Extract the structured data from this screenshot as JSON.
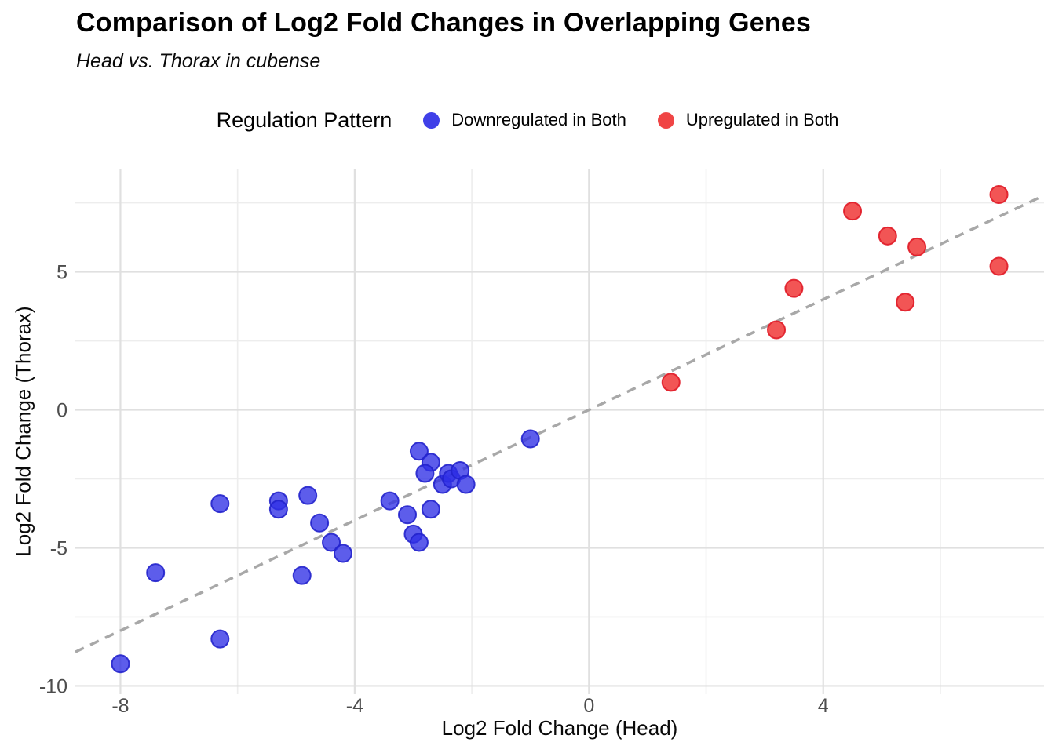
{
  "header": {
    "title": "Comparison of Log2 Fold Changes in Overlapping Genes",
    "subtitle": "Head vs. Thorax in cubense"
  },
  "legend": {
    "title": "Regulation Pattern",
    "items": [
      {
        "label": "Downregulated in Both",
        "color": "#4040e8"
      },
      {
        "label": "Upregulated in Both",
        "color": "#f04545"
      }
    ]
  },
  "chart_data": {
    "type": "scatter",
    "title": "Comparison of Log2 Fold Changes in Overlapping Genes",
    "subtitle": "Head vs. Thorax in cubense",
    "xlabel": "Log2 Fold Change (Head)",
    "ylabel": "Log2 Fold Change (Thorax)",
    "xlim": [
      -8.77,
      7.77
    ],
    "ylim": [
      -10.3,
      8.71
    ],
    "x_major_ticks": [
      -8,
      -4,
      0,
      4
    ],
    "x_minor_gridlines": [
      -6,
      -2,
      2,
      6
    ],
    "y_major_ticks": [
      -10,
      -5,
      0,
      5
    ],
    "y_minor_gridlines": [
      -7.5,
      -2.5,
      2.5,
      7.5
    ],
    "grid": true,
    "legend_position": "top",
    "tick_label_color": "#4d4d4d",
    "grid_major_color": "#e0e0e0",
    "grid_minor_color": "#ededed",
    "reference_line": {
      "slope": 1,
      "intercept": 0,
      "style": "dashed",
      "color": "#a8a8a8"
    },
    "series": [
      {
        "name": "Downregulated in Both",
        "fill": "rgba(48,48,230,0.78)",
        "stroke": "rgba(34,34,204,0.9)",
        "points": [
          [
            -8.0,
            -9.2
          ],
          [
            -7.4,
            -5.9
          ],
          [
            -6.3,
            -8.3
          ],
          [
            -6.3,
            -3.4
          ],
          [
            -5.3,
            -3.3
          ],
          [
            -5.3,
            -3.6
          ],
          [
            -4.9,
            -6.0
          ],
          [
            -4.8,
            -3.1
          ],
          [
            -4.6,
            -4.1
          ],
          [
            -4.4,
            -4.8
          ],
          [
            -4.2,
            -5.2
          ],
          [
            -3.4,
            -3.3
          ],
          [
            -3.1,
            -3.8
          ],
          [
            -3.0,
            -4.5
          ],
          [
            -2.9,
            -4.8
          ],
          [
            -2.9,
            -1.5
          ],
          [
            -2.7,
            -1.9
          ],
          [
            -2.8,
            -2.3
          ],
          [
            -2.7,
            -3.6
          ],
          [
            -2.5,
            -2.7
          ],
          [
            -2.4,
            -2.3
          ],
          [
            -2.35,
            -2.5
          ],
          [
            -2.2,
            -2.2
          ],
          [
            -2.1,
            -2.7
          ],
          [
            -1.0,
            -1.05
          ]
        ]
      },
      {
        "name": "Upregulated in Both",
        "fill": "rgba(240,55,55,0.85)",
        "stroke": "rgba(225,28,40,0.92)",
        "points": [
          [
            1.4,
            1.0
          ],
          [
            3.2,
            2.9
          ],
          [
            3.5,
            4.4
          ],
          [
            4.5,
            7.2
          ],
          [
            5.1,
            6.3
          ],
          [
            5.6,
            5.9
          ],
          [
            5.4,
            3.9
          ],
          [
            7.0,
            7.8
          ],
          [
            7.0,
            5.2
          ]
        ]
      }
    ]
  }
}
